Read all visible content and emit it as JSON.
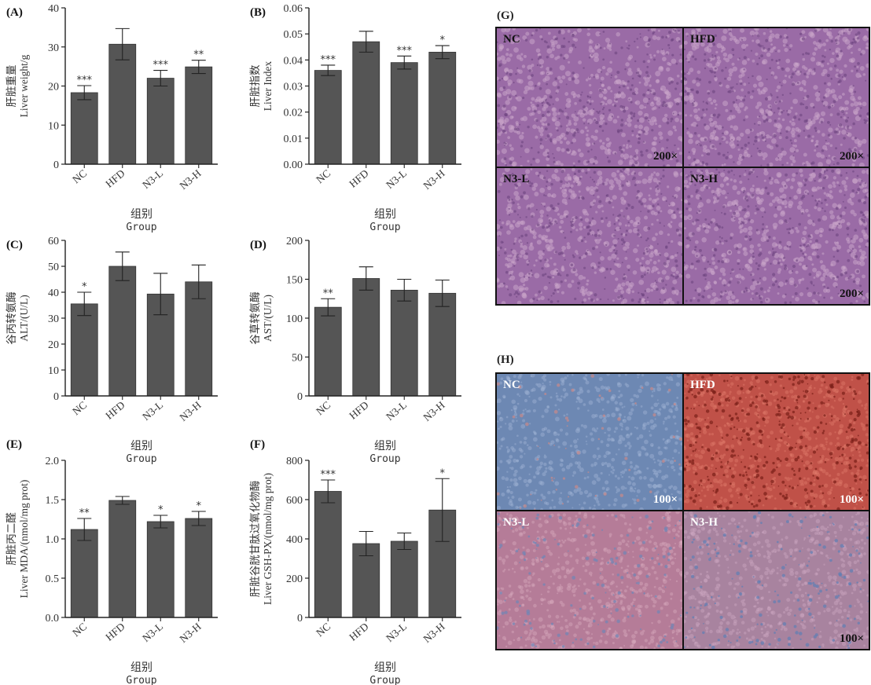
{
  "chart_data": [
    {
      "id": "A",
      "panel_label": "(A)",
      "type": "bar",
      "categories": [
        "NC",
        "HFD",
        "N3-L",
        "N3-H"
      ],
      "values": [
        18.3,
        30.7,
        22.0,
        24.9
      ],
      "errors": [
        1.8,
        4.0,
        2.0,
        1.7
      ],
      "sig": [
        "***",
        "",
        "***",
        "**"
      ],
      "ylim": [
        0,
        40
      ],
      "yticks": [
        "0",
        "10",
        "20",
        "30",
        "40"
      ],
      "ylabel_cn": "肝脏重量",
      "ylabel_en": "Liver weight/g",
      "xlabel_cn": "组别",
      "xlabel_en": "Group"
    },
    {
      "id": "B",
      "panel_label": "(B)",
      "type": "bar",
      "categories": [
        "NC",
        "HFD",
        "N3-L",
        "N3-H"
      ],
      "values": [
        0.036,
        0.047,
        0.039,
        0.043
      ],
      "errors": [
        0.002,
        0.004,
        0.0025,
        0.0025
      ],
      "sig": [
        "***",
        "",
        "***",
        "*"
      ],
      "ylim": [
        0,
        0.06
      ],
      "yticks": [
        "0.00",
        "0.01",
        "0.02",
        "0.03",
        "0.04",
        "0.05",
        "0.06"
      ],
      "ylabel_cn": "肝脏指数",
      "ylabel_en": "Liver Index",
      "xlabel_cn": "组别",
      "xlabel_en": "Group"
    },
    {
      "id": "C",
      "panel_label": "(C)",
      "type": "bar",
      "categories": [
        "NC",
        "HFD",
        "N3-L",
        "N3-H"
      ],
      "values": [
        35.5,
        50.0,
        39.3,
        44.0
      ],
      "errors": [
        4.5,
        5.5,
        8.0,
        6.5
      ],
      "sig": [
        "*",
        "",
        "",
        ""
      ],
      "ylim": [
        0,
        60
      ],
      "yticks": [
        "0",
        "10",
        "20",
        "30",
        "40",
        "50",
        "60"
      ],
      "ylabel_cn": "谷丙转氨酶",
      "ylabel_en": "ALT/(U/L)",
      "xlabel_cn": "组别",
      "xlabel_en": "Group"
    },
    {
      "id": "D",
      "panel_label": "(D)",
      "type": "bar",
      "categories": [
        "NC",
        "HFD",
        "N3-L",
        "N3-H"
      ],
      "values": [
        114,
        151,
        136,
        132
      ],
      "errors": [
        11,
        15,
        14,
        17
      ],
      "sig": [
        "**",
        "",
        "",
        ""
      ],
      "ylim": [
        0,
        200
      ],
      "yticks": [
        "0",
        "50",
        "100",
        "150",
        "200"
      ],
      "ylabel_cn": "谷草转氨酶",
      "ylabel_en": "AST/(U/L)",
      "xlabel_cn": "组别",
      "xlabel_en": "Group"
    },
    {
      "id": "E",
      "panel_label": "(E)",
      "type": "bar",
      "categories": [
        "NC",
        "HFD",
        "N3-L",
        "N3-H"
      ],
      "values": [
        1.12,
        1.49,
        1.22,
        1.26
      ],
      "errors": [
        0.14,
        0.05,
        0.08,
        0.09
      ],
      "sig": [
        "**",
        "",
        "*",
        "*"
      ],
      "ylim": [
        0,
        2.0
      ],
      "yticks": [
        "0.0",
        "0.5",
        "1.0",
        "1.5",
        "2.0"
      ],
      "ylabel_cn": "肝脏丙二醛",
      "ylabel_en": "Liver MDA/(nmol/mg prot)",
      "xlabel_cn": "组别",
      "xlabel_en": "Group"
    },
    {
      "id": "F",
      "panel_label": "(F)",
      "type": "bar",
      "categories": [
        "NC",
        "HFD",
        "N3-L",
        "N3-H"
      ],
      "values": [
        642,
        376,
        388,
        547
      ],
      "errors": [
        58,
        62,
        42,
        160
      ],
      "sig": [
        "***",
        "",
        "",
        "*"
      ],
      "ylim": [
        0,
        800
      ],
      "yticks": [
        "0",
        "200",
        "400",
        "600",
        "800"
      ],
      "ylabel_cn": "肝脏谷胱甘肽过氧化物酶",
      "ylabel_en": "Liver GSH-PX/(nmol/mg prot)",
      "xlabel_cn": "组别",
      "xlabel_en": "Group"
    }
  ],
  "images": {
    "G": {
      "panel_label": "(G)",
      "cells": [
        {
          "label": "NC",
          "mag": "200×"
        },
        {
          "label": "HFD",
          "mag": "200×"
        },
        {
          "label": "N3-L",
          "mag": ""
        },
        {
          "label": "N3-H",
          "mag": "200×"
        }
      ],
      "colors": {
        "base": "#9a6ba6",
        "light": "#c8a4c9",
        "dark": "#6e4580"
      }
    },
    "H": {
      "panel_label": "(H)",
      "cells": [
        {
          "label": "NC",
          "mag": "100×"
        },
        {
          "label": "HFD",
          "mag": "100×"
        },
        {
          "label": "N3-L",
          "mag": ""
        },
        {
          "label": "N3-H",
          "mag": "100×"
        }
      ],
      "colors": {
        "nc": "#6d88b3",
        "hfd": "#c05148",
        "n3l": "#b57c98",
        "n3h": "#a8839f"
      }
    }
  },
  "styles": {
    "bar_color": "#555555",
    "axis_color": "#222222",
    "text_color": "#333333"
  }
}
